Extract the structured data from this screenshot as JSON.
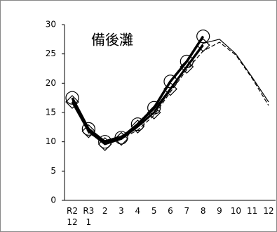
{
  "chart_data": {
    "type": "line",
    "title": "備後灘",
    "categories": [
      "R2\n12",
      "R3\n1",
      "2",
      "3",
      "4",
      "5",
      "6",
      "7",
      "8",
      "9",
      "10",
      "11",
      "12"
    ],
    "ylim": [
      0,
      30
    ],
    "yticks": [
      0,
      5,
      10,
      15,
      20,
      25,
      30
    ],
    "series": [
      {
        "color": "#000000",
        "line_width": 1.2,
        "line_style": "solid",
        "marker": "none",
        "values": [
          17.0,
          12.0,
          10.2,
          11.0,
          12.8,
          15.5,
          19.2,
          23.0,
          26.8,
          27.5,
          25.0,
          21.0,
          16.8
        ]
      },
      {
        "color": "#000000",
        "line_width": 1.2,
        "line_style": "dashed",
        "marker": "none",
        "values": [
          16.8,
          11.5,
          9.8,
          10.5,
          12.0,
          14.5,
          18.5,
          22.3,
          25.5,
          27.0,
          24.8,
          20.8,
          16.2
        ]
      },
      {
        "color": "#000000",
        "line_width": 3,
        "line_style": "solid",
        "marker": "diamond",
        "values": [
          16.8,
          11.8,
          9.6,
          10.5,
          12.6,
          15.0,
          19.0,
          22.8,
          26.5,
          null,
          null,
          null,
          null
        ]
      },
      {
        "color": "#000000",
        "line_width": 3.5,
        "line_style": "solid",
        "marker": "circle",
        "values": [
          17.5,
          12.2,
          10.0,
          10.7,
          13.0,
          15.8,
          20.3,
          23.7,
          28.0,
          null,
          null,
          null,
          null
        ]
      }
    ]
  }
}
